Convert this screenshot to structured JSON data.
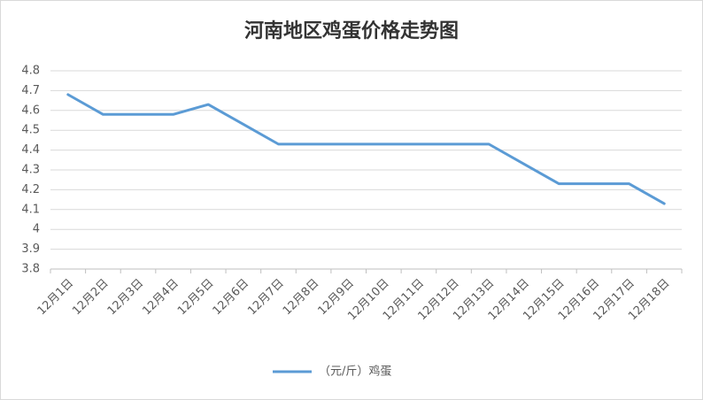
{
  "chart_data": {
    "type": "line",
    "title": "河南地区鸡蛋价格走势图",
    "categories": [
      "12月1日",
      "12月2日",
      "12月3日",
      "12月4日",
      "12月5日",
      "12月6日",
      "12月7日",
      "12月8日",
      "12月9日",
      "12月10日",
      "12月11日",
      "12月12日",
      "12月13日",
      "12月14日",
      "12月15日",
      "12月16日",
      "12月17日",
      "12月18日"
    ],
    "series": [
      {
        "name": "（元/斤）鸡蛋",
        "color": "#5b9bd5",
        "values": [
          4.68,
          4.58,
          4.58,
          4.58,
          4.63,
          4.53,
          4.43,
          4.43,
          4.43,
          4.43,
          4.43,
          4.43,
          4.43,
          4.33,
          4.23,
          4.23,
          4.23,
          4.13
        ]
      }
    ],
    "ylim": [
      3.8,
      4.8
    ],
    "yticks": [
      3.8,
      3.9,
      4,
      4.1,
      4.2,
      4.3,
      4.4,
      4.5,
      4.6,
      4.7,
      4.8
    ],
    "grid": true,
    "legend": "bottom"
  }
}
